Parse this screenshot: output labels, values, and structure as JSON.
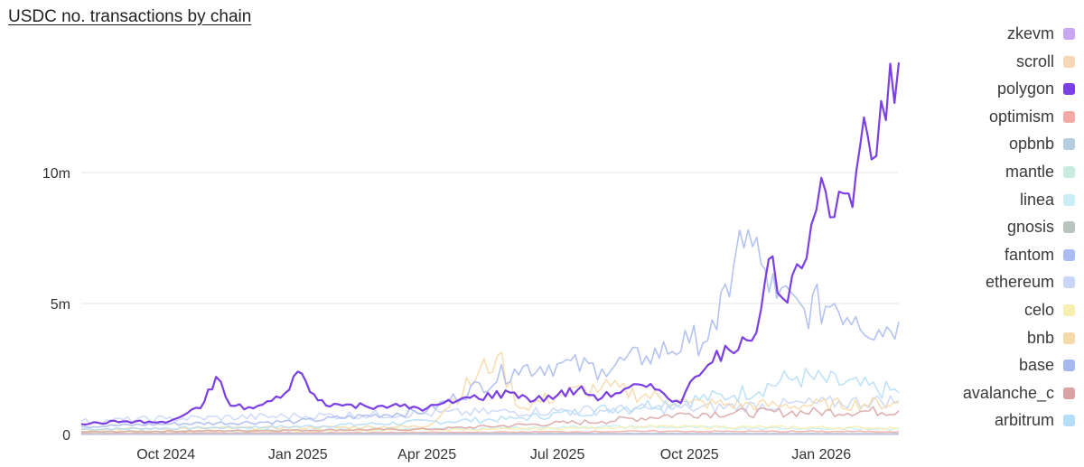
{
  "chart_data": {
    "type": "line",
    "title": "USDC no. transactions by chain",
    "xlabel": "",
    "ylabel": "",
    "x_ticks": [
      "Oct 2024",
      "Jan 2025",
      "Apr 2025",
      "Jul 2025",
      "Oct 2025",
      "Jan 2026"
    ],
    "y_ticks": [
      "0",
      "5m",
      "10m"
    ],
    "y_tick_values": [
      0,
      5000000,
      10000000
    ],
    "ylim": [
      0,
      14500000
    ],
    "xlim": [
      "2024-08-03",
      "2026-02-24"
    ],
    "grid": true,
    "legend_position": "right",
    "series": [
      {
        "name": "zkevm",
        "color": "#c9a6f2",
        "points": [
          [
            "2024-08-03",
            5000
          ],
          [
            "2025-06-01",
            8000
          ],
          [
            "2026-02-24",
            6000
          ]
        ]
      },
      {
        "name": "scroll",
        "color": "#f7d7b5",
        "points": [
          [
            "2024-08-03",
            15000
          ],
          [
            "2025-06-01",
            25000
          ],
          [
            "2026-02-24",
            20000
          ]
        ]
      },
      {
        "name": "polygon",
        "color": "#7b3fe4",
        "points": [
          [
            "2024-08-03",
            400000
          ],
          [
            "2024-09-01",
            500000
          ],
          [
            "2024-10-01",
            450000
          ],
          [
            "2024-10-25",
            1000000
          ],
          [
            "2024-11-05",
            2200000
          ],
          [
            "2024-11-15",
            1100000
          ],
          [
            "2024-12-01",
            1000000
          ],
          [
            "2024-12-20",
            1400000
          ],
          [
            "2025-01-01",
            2400000
          ],
          [
            "2025-01-15",
            1300000
          ],
          [
            "2025-02-01",
            1100000
          ],
          [
            "2025-03-01",
            1100000
          ],
          [
            "2025-04-01",
            1000000
          ],
          [
            "2025-05-01",
            1400000
          ],
          [
            "2025-06-01",
            1600000
          ],
          [
            "2025-06-15",
            1300000
          ],
          [
            "2025-07-01",
            1500000
          ],
          [
            "2025-07-15",
            1700000
          ],
          [
            "2025-08-01",
            1400000
          ],
          [
            "2025-08-20",
            1800000
          ],
          [
            "2025-09-10",
            1700000
          ],
          [
            "2025-09-25",
            1200000
          ],
          [
            "2025-10-05",
            2200000
          ],
          [
            "2025-10-20",
            3200000
          ],
          [
            "2025-11-01",
            3100000
          ],
          [
            "2025-11-10",
            3600000
          ],
          [
            "2025-11-20",
            4800000
          ],
          [
            "2025-11-28",
            6800000
          ],
          [
            "2025-12-05",
            5200000
          ],
          [
            "2025-12-15",
            6500000
          ],
          [
            "2025-12-25",
            8000000
          ],
          [
            "2026-01-01",
            9800000
          ],
          [
            "2026-01-10",
            8300000
          ],
          [
            "2026-01-20",
            9200000
          ],
          [
            "2026-01-28",
            11000000
          ],
          [
            "2026-02-05",
            10500000
          ],
          [
            "2026-02-15",
            12000000
          ],
          [
            "2026-02-24",
            14200000
          ]
        ]
      },
      {
        "name": "optimism",
        "color": "#f4aaa4",
        "points": [
          [
            "2024-08-03",
            50000
          ],
          [
            "2025-05-01",
            80000
          ],
          [
            "2025-09-01",
            120000
          ],
          [
            "2026-02-24",
            110000
          ]
        ]
      },
      {
        "name": "opbnb",
        "color": "#b5cde0",
        "points": [
          [
            "2024-08-03",
            20000
          ],
          [
            "2025-06-01",
            40000
          ],
          [
            "2026-02-24",
            30000
          ]
        ]
      },
      {
        "name": "mantle",
        "color": "#c8ece0",
        "points": [
          [
            "2024-08-03",
            10000
          ],
          [
            "2025-06-01",
            20000
          ],
          [
            "2026-02-24",
            15000
          ]
        ]
      },
      {
        "name": "linea",
        "color": "#c9eef5",
        "points": [
          [
            "2024-08-03",
            100000
          ],
          [
            "2025-04-01",
            200000
          ],
          [
            "2025-08-01",
            300000
          ],
          [
            "2026-02-24",
            200000
          ]
        ]
      },
      {
        "name": "gnosis",
        "color": "#b8c4bd",
        "points": [
          [
            "2024-08-03",
            20000
          ],
          [
            "2025-06-01",
            30000
          ],
          [
            "2026-02-24",
            25000
          ]
        ]
      },
      {
        "name": "fantom",
        "color": "#aabcf2",
        "points": [
          [
            "2024-08-03",
            10000
          ],
          [
            "2025-06-01",
            15000
          ],
          [
            "2026-02-24",
            12000
          ]
        ]
      },
      {
        "name": "ethereum",
        "color": "#c9d6f7",
        "points": [
          [
            "2024-08-03",
            500000
          ],
          [
            "2024-10-01",
            600000
          ],
          [
            "2025-01-01",
            700000
          ],
          [
            "2025-04-01",
            800000
          ],
          [
            "2025-07-01",
            900000
          ],
          [
            "2025-10-01",
            1000000
          ],
          [
            "2026-02-24",
            1300000
          ]
        ]
      },
      {
        "name": "celo",
        "color": "#f7efb0",
        "points": [
          [
            "2024-08-03",
            100000
          ],
          [
            "2025-06-01",
            200000
          ],
          [
            "2025-09-01",
            300000
          ],
          [
            "2026-02-24",
            250000
          ]
        ]
      },
      {
        "name": "bnb",
        "color": "#f6d9a8",
        "points": [
          [
            "2024-08-03",
            200000
          ],
          [
            "2025-04-01",
            300000
          ],
          [
            "2025-05-20",
            3000000
          ],
          [
            "2025-06-05",
            1000000
          ],
          [
            "2025-07-01",
            1500000
          ],
          [
            "2025-08-01",
            1800000
          ],
          [
            "2025-10-01",
            1200000
          ],
          [
            "2025-12-01",
            1100000
          ],
          [
            "2026-02-24",
            1200000
          ]
        ]
      },
      {
        "name": "base",
        "color": "#a7b8f0",
        "points": [
          [
            "2024-08-03",
            300000
          ],
          [
            "2024-10-01",
            400000
          ],
          [
            "2025-01-01",
            500000
          ],
          [
            "2025-04-01",
            900000
          ],
          [
            "2025-06-01",
            2500000
          ],
          [
            "2025-07-01",
            2700000
          ],
          [
            "2025-08-01",
            2500000
          ],
          [
            "2025-09-01",
            3000000
          ],
          [
            "2025-10-01",
            3500000
          ],
          [
            "2025-10-20",
            4000000
          ],
          [
            "2025-11-01",
            6500000
          ],
          [
            "2025-11-05",
            7800000
          ],
          [
            "2025-11-20",
            6500000
          ],
          [
            "2025-12-01",
            5200000
          ],
          [
            "2025-12-20",
            4800000
          ],
          [
            "2026-01-10",
            5000000
          ],
          [
            "2026-01-25",
            4500000
          ],
          [
            "2026-02-10",
            4000000
          ],
          [
            "2026-02-24",
            4300000
          ]
        ]
      },
      {
        "name": "avalanche_c",
        "color": "#d9a3a3",
        "points": [
          [
            "2024-08-03",
            100000
          ],
          [
            "2025-04-01",
            200000
          ],
          [
            "2025-08-01",
            500000
          ],
          [
            "2025-10-01",
            800000
          ],
          [
            "2026-02-24",
            900000
          ]
        ]
      },
      {
        "name": "arbitrum",
        "color": "#b4ddf7",
        "points": [
          [
            "2024-08-03",
            200000
          ],
          [
            "2025-01-01",
            300000
          ],
          [
            "2025-06-01",
            600000
          ],
          [
            "2025-11-01",
            1500000
          ],
          [
            "2025-12-15",
            2200000
          ],
          [
            "2026-02-24",
            1600000
          ]
        ]
      }
    ]
  }
}
